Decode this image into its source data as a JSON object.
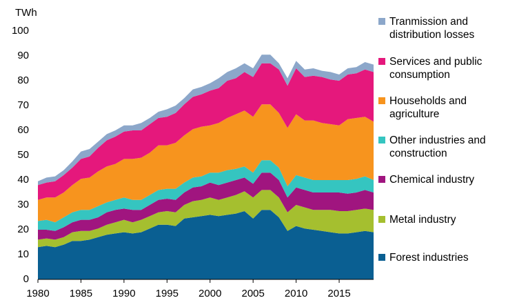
{
  "chart_data": {
    "type": "stacked_area",
    "y_label": "TWh",
    "x": [
      1980,
      1981,
      1982,
      1983,
      1984,
      1985,
      1986,
      1987,
      1988,
      1989,
      1990,
      1991,
      1992,
      1993,
      1994,
      1995,
      1996,
      1997,
      1998,
      1999,
      2000,
      2001,
      2002,
      2003,
      2004,
      2005,
      2006,
      2007,
      2008,
      2009,
      2010,
      2011,
      2012,
      2013,
      2014,
      2015,
      2016,
      2017,
      2018,
      2019
    ],
    "xlim": [
      1980,
      2019
    ],
    "xticks": [
      1980,
      1985,
      1990,
      1995,
      2000,
      2005,
      2010,
      2015
    ],
    "ylim": [
      0,
      100
    ],
    "yticks": [
      0,
      10,
      20,
      30,
      40,
      50,
      60,
      70,
      80,
      90,
      100
    ],
    "series": [
      {
        "name": "Forest industries",
        "color": "#0a5f92",
        "values": [
          13,
          13.5,
          13,
          14,
          15.5,
          15.5,
          16,
          17,
          18,
          18.5,
          19,
          18.5,
          19,
          20.5,
          22,
          22,
          21.5,
          24.5,
          25,
          25.5,
          26,
          25.5,
          26,
          26.5,
          27.5,
          24.5,
          28,
          28,
          25,
          19.5,
          21.5,
          20.5,
          20,
          19.5,
          19,
          18.5,
          18.5,
          19,
          19.5,
          19
        ]
      },
      {
        "name": "Metal industry",
        "color": "#a5bf2f",
        "values": [
          3,
          3,
          3,
          3,
          3.5,
          4,
          3.5,
          3.5,
          4,
          4.5,
          5,
          4.5,
          5,
          5,
          5,
          5.5,
          5.5,
          5.5,
          6.5,
          6.5,
          7,
          6.5,
          7,
          7.5,
          8,
          8.5,
          8,
          8,
          8,
          7.5,
          8.5,
          8.5,
          8,
          8.5,
          9,
          9,
          9,
          9,
          9,
          9
        ]
      },
      {
        "name": "Chemical industry",
        "color": "#a0157f",
        "values": [
          4,
          3.5,
          3.5,
          4,
          4,
          4.5,
          4.5,
          4.5,
          5,
          5,
          4.5,
          5,
          4,
          4.5,
          5,
          5,
          5,
          5,
          5.5,
          5.5,
          6,
          6,
          6,
          6,
          5.5,
          5.5,
          7,
          7,
          7,
          6,
          7,
          7,
          7,
          7,
          7,
          7.5,
          7,
          7,
          7.5,
          7
        ]
      },
      {
        "name": "Other industries and construction",
        "color": "#35c5c0",
        "values": [
          3.5,
          4,
          3.5,
          4,
          4,
          4,
          4,
          4.5,
          4,
          4,
          4.5,
          4,
          4,
          4,
          4,
          4,
          4.5,
          4,
          4,
          4,
          4,
          5,
          5,
          4.5,
          4.5,
          4.5,
          5,
          5,
          5,
          4.5,
          5,
          5,
          5,
          5,
          5,
          5,
          5.5,
          5.5,
          5.5,
          5
        ]
      },
      {
        "name": "Households and agriculture",
        "color": "#f7941e",
        "values": [
          8.5,
          9,
          10,
          10,
          11,
          12.5,
          13,
          14,
          14.5,
          14.5,
          15.5,
          16.5,
          17,
          17,
          18,
          17.5,
          18.5,
          19,
          19.5,
          20,
          19,
          20,
          21,
          22,
          22.5,
          22.5,
          22.5,
          22.5,
          22,
          23.5,
          24.5,
          23,
          24,
          23,
          22.5,
          22,
          24.5,
          24.5,
          24,
          23.5
        ]
      },
      {
        "name": "Services and public consumption",
        "color": "#e5187c",
        "values": [
          6,
          6,
          6.5,
          7,
          7,
          8,
          8.5,
          9.5,
          10.5,
          11,
          11,
          11.5,
          11,
          11.5,
          11,
          11.5,
          12,
          12.5,
          13,
          13,
          14,
          14,
          15,
          14.5,
          15.5,
          16,
          16.5,
          16.5,
          17.5,
          17,
          18.5,
          17.5,
          18,
          18.5,
          18,
          18,
          18,
          18,
          19,
          20
        ]
      },
      {
        "name": "Tranmission and distribution losses",
        "color": "#8ca7ca",
        "values": [
          1.5,
          2,
          2,
          2,
          2.5,
          3,
          3,
          2.5,
          2.5,
          2.5,
          2.5,
          2,
          3,
          2.5,
          2.5,
          3,
          3,
          2.5,
          3,
          3,
          3,
          4,
          3.5,
          4,
          3.5,
          3.5,
          3.5,
          3.5,
          2.5,
          3,
          3,
          3,
          3,
          2.5,
          3,
          2.5,
          2.5,
          2.5,
          3,
          3
        ]
      }
    ]
  }
}
